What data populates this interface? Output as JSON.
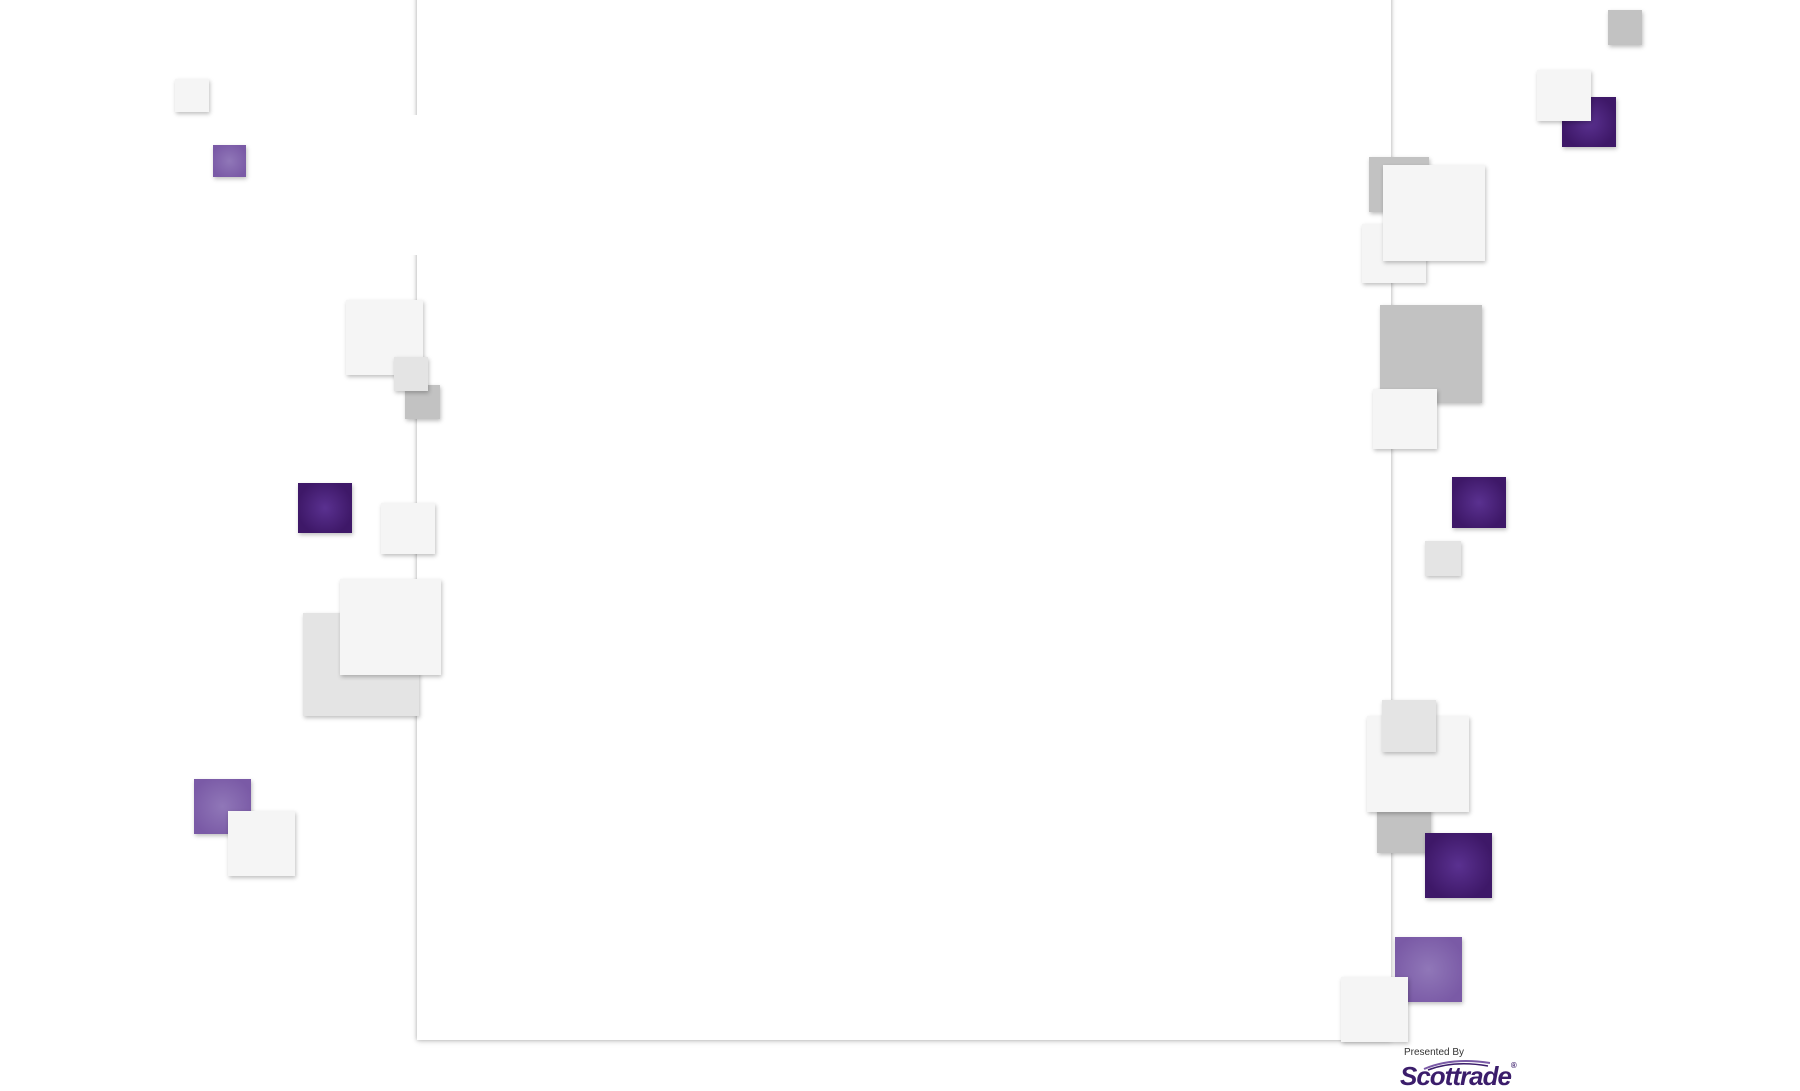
{
  "footer": {
    "presented_by": "Presented By",
    "brand": "Scottrade",
    "registered_mark": "®"
  },
  "colors": {
    "background": "#ffffff",
    "dark_purple": "#3e1868",
    "medium_purple": "#7a5aa6",
    "light_gray": "#e4e4e4",
    "gray": "#c2c2c2",
    "off_white": "#f5f5f5"
  }
}
